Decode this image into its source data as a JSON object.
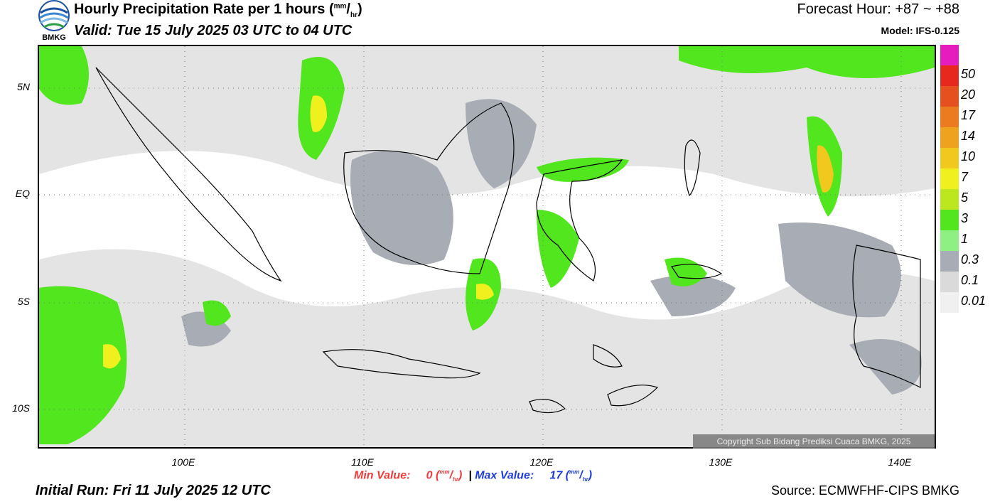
{
  "header": {
    "title_main": "Hourly Precipitation Rate per 1 hours (",
    "title_unit_sup": "mm",
    "title_unit_sub": "hr",
    "title_end": ")",
    "valid": "Valid: Tue 15 July 2025 03 UTC to 04 UTC",
    "forecast_hour": "Forecast Hour: +87 ~ +88",
    "model": "Model: IFS-0.125",
    "logo_text": "BMKG"
  },
  "axes": {
    "lat_labels": [
      "5N",
      "EQ",
      "5S",
      "10S"
    ],
    "lon_labels": [
      "100E",
      "110E",
      "120E",
      "130E",
      "140E"
    ]
  },
  "stats": {
    "min_label": "Min Value:",
    "min_value": "0",
    "max_label": "Max Value:",
    "max_value": "17",
    "unit_sup": "mm",
    "unit_sub": "hr",
    "separator": "|"
  },
  "footer": {
    "initial_run": "Initial Run: Fri 11 July 2025 12 UTC",
    "source": "Source: ECMWFHF-CIPS BMKG",
    "copyright": "Copyright Sub Bidang Prediksi Cuaca BMKG, 2025"
  },
  "legend": {
    "labels": [
      "50",
      "20",
      "17",
      "14",
      "10",
      "7",
      "5",
      "3",
      "1",
      "0.3",
      "0.1",
      "0.01"
    ],
    "colors": [
      "#e61cbe",
      "#e6281e",
      "#e6501e",
      "#ec7a1e",
      "#eea21e",
      "#f0c81e",
      "#f0f01e",
      "#bce61e",
      "#52e61e",
      "#8ef082",
      "#a8acb4",
      "#dadada",
      "#f0f0f0"
    ]
  },
  "colors": {
    "land_outline": "#000000",
    "rain_light": "#dadada",
    "rain_grey": "#a8acb4",
    "rain_green_light": "#8ef082",
    "rain_green": "#52e61e",
    "rain_yellow": "#f0f01e",
    "rain_orange": "#eea21e"
  }
}
